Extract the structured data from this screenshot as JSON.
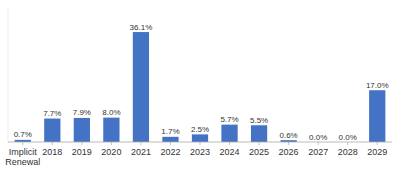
{
  "chart_data": {
    "type": "bar",
    "categories": [
      "Implicit\nRenewal",
      "2018",
      "2019",
      "2020",
      "2021",
      "2022",
      "2023",
      "2024",
      "2025",
      "2026",
      "2027",
      "2028",
      "2029"
    ],
    "values": [
      0.7,
      7.7,
      7.9,
      8.0,
      36.1,
      1.7,
      2.5,
      5.7,
      5.5,
      0.6,
      0.0,
      0.0,
      17.0
    ],
    "value_labels": [
      "0.7%",
      "7.7%",
      "7.9%",
      "8.0%",
      "36.1%",
      "1.7%",
      "2.5%",
      "5.7%",
      "5.5%",
      "0.6%",
      "0.0%",
      "0.0%",
      "17.0%"
    ],
    "color": "#4472C4",
    "ylim": [
      0,
      44
    ],
    "data_labels": true,
    "tick_labels": "x"
  }
}
